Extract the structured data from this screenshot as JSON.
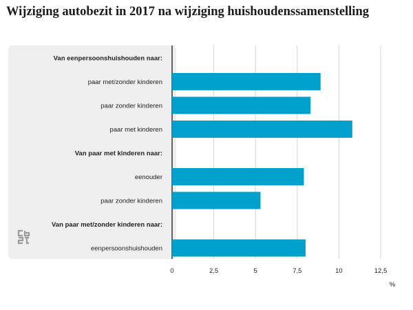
{
  "title": "Wijziging autobezit in 2017 na wijziging huishoudenssamenstelling",
  "colors": {
    "bar": "#00A1CD",
    "panel": "#EFEFEF",
    "grid": "#D4D4D4",
    "axis": "#333333",
    "logo": "#9A9A9A"
  },
  "logo_icon": "cbs-logo-icon",
  "chart_data": {
    "type": "bar",
    "orientation": "horizontal",
    "title": "Wijziging autobezit in 2017 na wijziging huishoudenssamenstelling",
    "xlabel": "",
    "unit": "%",
    "ylabel": "",
    "xlim": [
      0,
      12.5
    ],
    "xticks": [
      "0",
      "2,5",
      "5",
      "7,5",
      "10",
      "12,5"
    ],
    "xtick_values": [
      0,
      2.5,
      5,
      7.5,
      10,
      12.5
    ],
    "grid": true,
    "rows": [
      {
        "label": "Van eenpersoonshuishouden naar:",
        "group": true,
        "value": null
      },
      {
        "label": "paar met/zonder kinderen",
        "group": false,
        "value": 8.9
      },
      {
        "label": "paar zonder kinderen",
        "group": false,
        "value": 8.3
      },
      {
        "label": "paar met kinderen",
        "group": false,
        "value": 10.8
      },
      {
        "label": "Van paar met kinderen naar:",
        "group": true,
        "value": null
      },
      {
        "label": "eenouder",
        "group": false,
        "value": 7.9
      },
      {
        "label": "paar zonder kinderen",
        "group": false,
        "value": 5.3
      },
      {
        "label": "Van paar met/zonder kinderen naar:",
        "group": true,
        "value": null
      },
      {
        "label": "eenpersoonshuishouden",
        "group": false,
        "value": 8.0
      }
    ]
  }
}
